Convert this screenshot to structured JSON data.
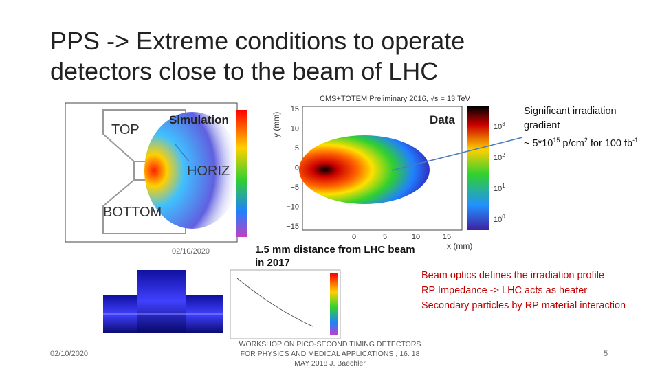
{
  "title": "PPS -> Extreme conditions to operate detectors close to the beam of LHC",
  "simulation_plot": {
    "label": "Simulation",
    "regions": [
      "TOP",
      "HORIZ",
      "BOTTOM"
    ],
    "date": "02/10/2020"
  },
  "data_plot": {
    "label": "Data",
    "header": "CMS+TOTEM Preliminary 2016, √s = 13 TeV",
    "y_axis": "y  (mm)",
    "x_axis": "x  (mm)",
    "yticks": [
      "15",
      "10",
      "5",
      "0",
      "−5",
      "−10",
      "−15"
    ],
    "xticks": [
      "0",
      "5",
      "10",
      "15"
    ],
    "scale": [
      {
        "base": "10",
        "exp": "3"
      },
      {
        "base": "10",
        "exp": "2"
      },
      {
        "base": "10",
        "exp": "1"
      },
      {
        "base": "10",
        "exp": "0"
      }
    ]
  },
  "annotation": {
    "line1": "Significant irradiation",
    "line2": "gradient",
    "pre": "~ 5*10",
    "exp1": "15",
    "mid": " p/cm",
    "exp2": "2",
    "post": " for 100 fb",
    "exp3": "-1"
  },
  "distance_note": "1.5 mm distance from LHC beam in 2017",
  "bullets": [
    "Beam optics defines the irradiation profile",
    "RP Impedance -> LHC acts as heater",
    "Secondary particles by RP material interaction"
  ],
  "footer": {
    "date": "02/10/2020",
    "workshop": "WORKSHOP ON PICO-SECOND TIMING DETECTORS FOR PHYSICS AND MEDICAL APPLICATIONS ,  16. 18  MAY 2018 J. Baechler",
    "page": "5"
  }
}
